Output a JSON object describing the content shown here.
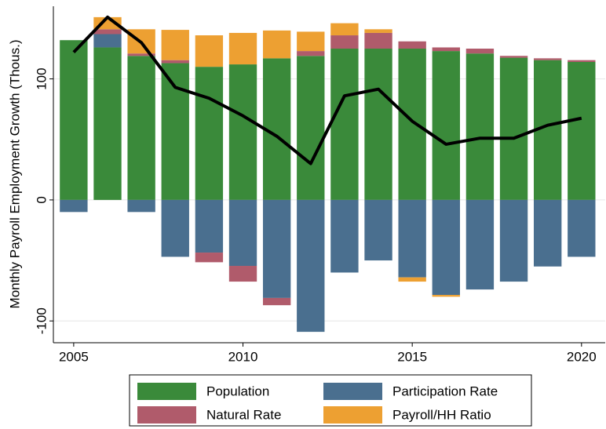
{
  "chart_data": {
    "type": "bar",
    "y_label": "Monthly Payroll Employment Growth (Thous.)",
    "x": [
      2005,
      2006,
      2007,
      2008,
      2009,
      2010,
      2011,
      2012,
      2013,
      2014,
      2015,
      2016,
      2017,
      2018,
      2019,
      2020
    ],
    "series": [
      {
        "name": "Population",
        "color": "#3a8a3a",
        "values": [
          132,
          126,
          119,
          113,
          110,
          112,
          117,
          119,
          125,
          125,
          125,
          123,
          121,
          117.5,
          115.5,
          114
        ]
      },
      {
        "name": "Participation Rate",
        "color": "#4a6f8f",
        "values": [
          -10,
          11,
          -10,
          -47,
          -43.5,
          -54.5,
          -81,
          -109,
          -60,
          -50,
          -64,
          -78.5,
          -74,
          -67.5,
          -55,
          -47
        ]
      },
      {
        "name": "Natural Rate",
        "color": "#b05b6b",
        "values": [
          0,
          4,
          2,
          2.5,
          -8,
          -13,
          -6,
          4,
          11,
          13,
          6,
          3,
          4,
          1.5,
          1.5,
          1.5
        ]
      },
      {
        "name": "Payroll/HH Ratio",
        "color": "#eda032",
        "values": [
          0,
          10,
          20,
          25,
          26,
          26,
          23,
          16,
          10,
          3,
          -3.5,
          -1.5,
          0,
          0,
          0,
          0
        ]
      }
    ],
    "line": {
      "color": "#000000",
      "values": [
        122,
        151,
        130,
        93,
        84,
        69.5,
        52.6,
        30,
        86,
        91.5,
        65,
        46,
        51,
        51,
        61.7,
        67.5
      ]
    },
    "xlim": [
      2004.4,
      2020.7
    ],
    "xticks": [
      2005,
      2010,
      2015,
      2020
    ],
    "ylim": [
      -118,
      160
    ],
    "yticks": [
      -100,
      0,
      100
    ],
    "grid": true,
    "legend_position": "bottom"
  }
}
